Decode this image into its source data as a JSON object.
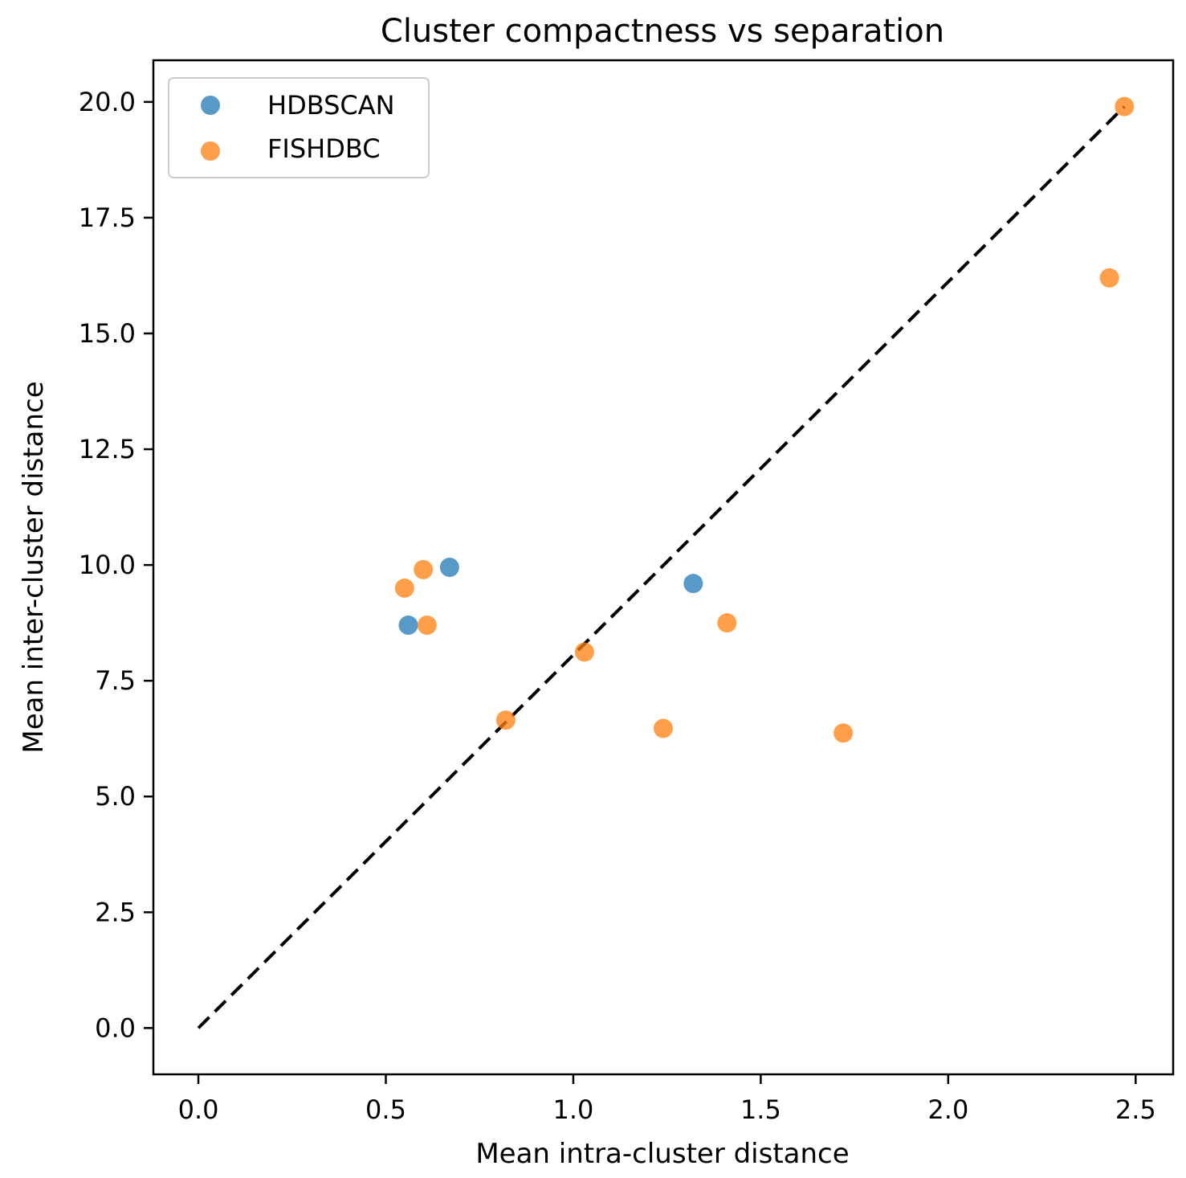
{
  "chart_data": {
    "type": "scatter",
    "title": "Cluster compactness vs separation",
    "xlabel": "Mean intra-cluster distance",
    "ylabel": "Mean inter-cluster distance",
    "xlim": [
      -0.12,
      2.6
    ],
    "ylim": [
      -1.0,
      20.9
    ],
    "xticks": [
      0.0,
      0.5,
      1.0,
      1.5,
      2.0,
      2.5
    ],
    "xtick_labels": [
      "0.0",
      "0.5",
      "1.0",
      "1.5",
      "2.0",
      "2.5"
    ],
    "yticks": [
      0.0,
      2.5,
      5.0,
      7.5,
      10.0,
      12.5,
      15.0,
      17.5,
      20.0
    ],
    "ytick_labels": [
      "0.0",
      "2.5",
      "5.0",
      "7.5",
      "10.0",
      "12.5",
      "15.0",
      "17.5",
      "20.0"
    ],
    "legend_position": "top-left",
    "reference_line": {
      "style": "dashed",
      "color": "#000000",
      "x": [
        0.0,
        2.47
      ],
      "y": [
        0.0,
        19.9
      ]
    },
    "series": [
      {
        "name": "HDBSCAN",
        "color": "#1f77b4",
        "points": [
          {
            "x": 0.67,
            "y": 9.95
          },
          {
            "x": 0.56,
            "y": 8.7
          },
          {
            "x": 1.32,
            "y": 9.6
          }
        ]
      },
      {
        "name": "FISHDBC",
        "color": "#ff7f0e",
        "points": [
          {
            "x": 0.6,
            "y": 9.9
          },
          {
            "x": 0.55,
            "y": 9.5
          },
          {
            "x": 0.61,
            "y": 8.7
          },
          {
            "x": 0.82,
            "y": 6.65
          },
          {
            "x": 1.03,
            "y": 8.12
          },
          {
            "x": 1.24,
            "y": 6.47
          },
          {
            "x": 1.41,
            "y": 8.75
          },
          {
            "x": 1.72,
            "y": 6.37
          },
          {
            "x": 2.43,
            "y": 16.2
          },
          {
            "x": 2.47,
            "y": 19.9
          }
        ]
      }
    ]
  }
}
